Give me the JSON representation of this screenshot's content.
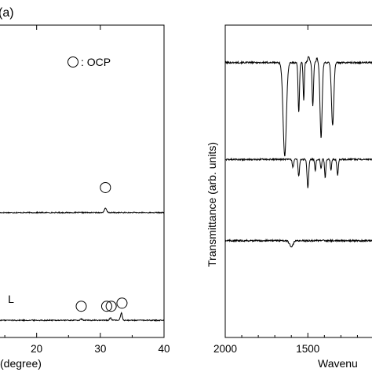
{
  "figure_label": "(a)",
  "chart_data": [
    {
      "type": "line",
      "xlabel": "(degree)",
      "ylabel": "",
      "xlim": [
        14,
        40
      ],
      "ylim": [
        0,
        100
      ],
      "x_ticks": [
        20,
        30,
        40
      ],
      "x_tick_labels": [
        "20",
        "30",
        "40"
      ],
      "legend": {
        "marker": "circle",
        "label": ": OCP"
      },
      "annotations": [
        {
          "text": "L",
          "x": 15.5,
          "y": 11
        }
      ],
      "series": [
        {
          "baseline": 40,
          "peaks": [
            {
              "x": 30.8,
              "h": 1.3,
              "w": 0.25
            }
          ]
        },
        {
          "baseline": 5.5,
          "peaks": [
            {
              "x": 31.6,
              "h": 0.8,
              "w": 0.2
            },
            {
              "x": 33.3,
              "h": 2.4,
              "w": 0.2
            },
            {
              "x": 27.0,
              "h": 0.4,
              "w": 0.2
            }
          ]
        }
      ],
      "markers": [
        {
          "x": 30.8,
          "y": 48
        },
        {
          "x": 27.0,
          "y": 10
        },
        {
          "x": 31.0,
          "y": 10
        },
        {
          "x": 31.7,
          "y": 10
        },
        {
          "x": 33.4,
          "y": 11
        }
      ],
      "grid": false
    },
    {
      "type": "line",
      "xlabel": "Wavenu",
      "ylabel": "Transmittance (arb. units)",
      "xlim": [
        2000,
        1050
      ],
      "ylim": [
        0,
        100
      ],
      "x_ticks": [
        2000,
        1500
      ],
      "x_tick_labels": [
        "2000",
        "1500"
      ],
      "minor_ticks": [
        1900,
        1800,
        1700,
        1600,
        1400,
        1300,
        1200,
        1100
      ],
      "series": [
        {
          "baseline": 88,
          "dips": [
            {
              "x": 1640,
              "d": 30,
              "w": 14
            },
            {
              "x": 1555,
              "d": 16,
              "w": 6
            },
            {
              "x": 1525,
              "d": 12,
              "w": 5
            },
            {
              "x": 1470,
              "d": 14,
              "w": 6
            },
            {
              "x": 1420,
              "d": 24,
              "w": 9
            },
            {
              "x": 1350,
              "d": 20,
              "w": 10
            }
          ],
          "bumps": [
            {
              "x": 1495,
              "h": 2,
              "w": 8
            },
            {
              "x": 1445,
              "h": 1.5,
              "w": 6
            }
          ]
        },
        {
          "baseline": 57,
          "dips": [
            {
              "x": 1590,
              "d": 2.5,
              "w": 6
            },
            {
              "x": 1555,
              "d": 5.5,
              "w": 6
            },
            {
              "x": 1500,
              "d": 9,
              "w": 7
            },
            {
              "x": 1455,
              "d": 3.5,
              "w": 5
            },
            {
              "x": 1420,
              "d": 3,
              "w": 5
            },
            {
              "x": 1395,
              "d": 6,
              "w": 5
            },
            {
              "x": 1360,
              "d": 3.5,
              "w": 5
            },
            {
              "x": 1320,
              "d": 5,
              "w": 6
            }
          ]
        },
        {
          "baseline": 31,
          "dips": [
            {
              "x": 1600,
              "d": 2,
              "w": 15
            }
          ]
        }
      ],
      "grid": false
    }
  ]
}
